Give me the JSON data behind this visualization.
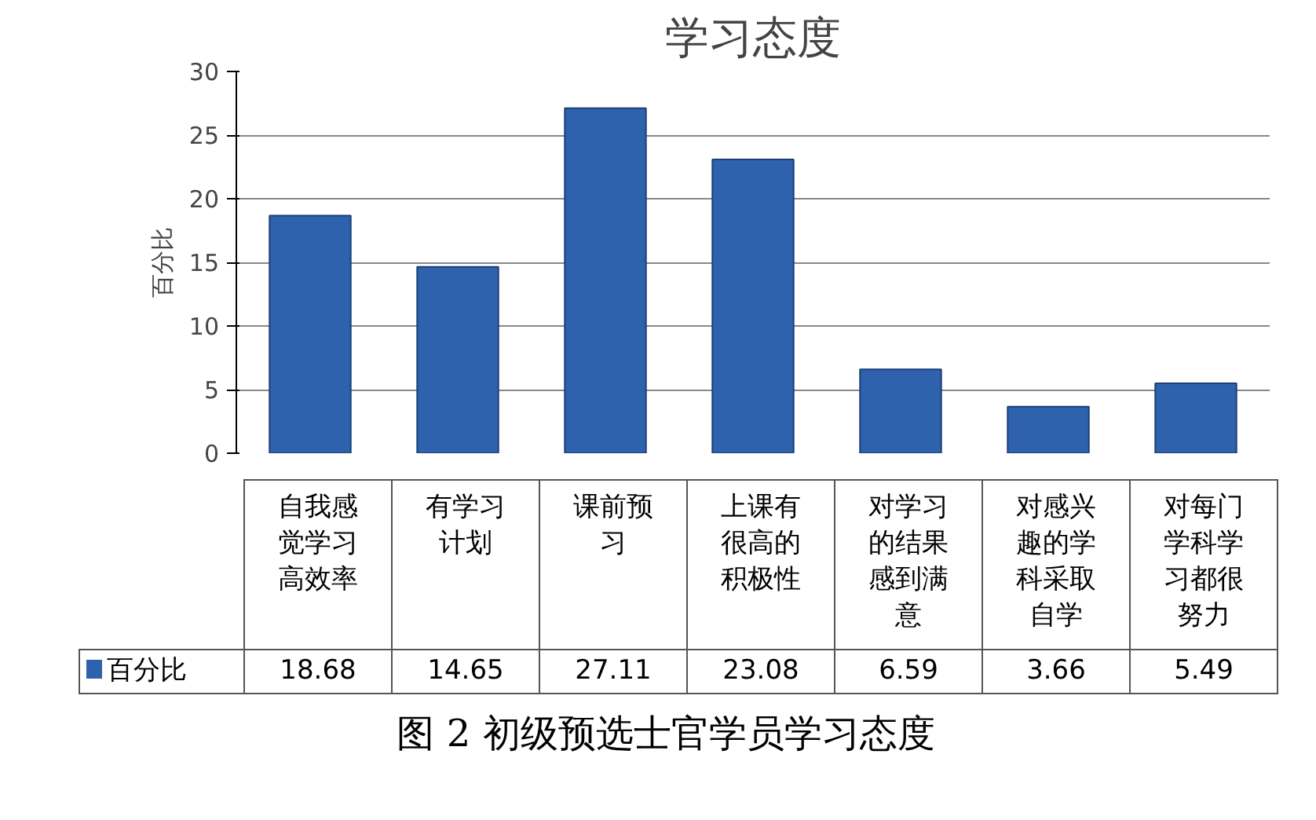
{
  "chart_data": {
    "type": "bar",
    "title": "学习态度",
    "ylabel": "百分比",
    "categories": [
      "自我感觉学习高效率",
      "有学习计划",
      "课前预习",
      "上课有很高的积极性",
      "对学习的结果感到满意",
      "对感兴趣的学科采取自学",
      "对每门学科学习都很努力"
    ],
    "series": [
      {
        "name": "百分比",
        "color": "#2f62ad",
        "values": [
          18.68,
          14.65,
          27.11,
          23.08,
          6.59,
          3.66,
          5.49
        ]
      }
    ],
    "ylim": [
      0,
      30
    ],
    "yticks": [
      0,
      5,
      10,
      15,
      20,
      25,
      30
    ],
    "grid": "y",
    "data_labels": true,
    "legend": "bottom",
    "annotations": [
      "图 2 初级预选士官学员学习态度"
    ]
  }
}
